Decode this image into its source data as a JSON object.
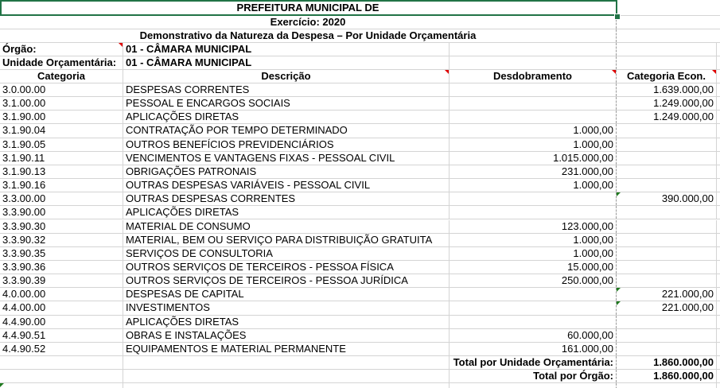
{
  "header": {
    "title": "PREFEITURA MUNICIPAL DE",
    "exercise": "Exercício: 2020",
    "subtitle": "Demonstrativo da Natureza da Despesa – Por Unidade Orçamentária",
    "orgao_label": "Órgão:",
    "orgao_value": "01 - CÂMARA MUNICIPAL",
    "unidade_label": "Unidade Orçamentária:",
    "unidade_value": "01 - CÂMARA MUNICIPAL"
  },
  "columns": [
    "Categoria",
    "Descrição",
    "Desdobramento",
    "Categoria Econ."
  ],
  "rows": [
    {
      "cat": "3.0.00.00",
      "desc": "DESPESAS CORRENTES",
      "desd": "",
      "econ": "1.639.000,00"
    },
    {
      "cat": "3.1.00.00",
      "desc": "PESSOAL E ENCARGOS SOCIAIS",
      "desd": "",
      "econ": "1.249.000,00"
    },
    {
      "cat": "3.1.90.00",
      "desc": "APLICAÇÕES DIRETAS",
      "desd": "",
      "econ": "1.249.000,00"
    },
    {
      "cat": "3.1.90.04",
      "desc": "CONTRATAÇÃO POR TEMPO DETERMINADO",
      "desd": "1.000,00",
      "econ": ""
    },
    {
      "cat": "3.1.90.05",
      "desc": "OUTROS BENEFÍCIOS PREVIDENCIÁRIOS",
      "desd": "1.000,00",
      "econ": ""
    },
    {
      "cat": "3.1.90.11",
      "desc": "VENCIMENTOS E VANTAGENS FIXAS -  PESSOAL CIVIL",
      "desd": "1.015.000,00",
      "econ": ""
    },
    {
      "cat": "3.1.90.13",
      "desc": "OBRIGAÇÕES PATRONAIS",
      "desd": "231.000,00",
      "econ": ""
    },
    {
      "cat": "3.1.90.16",
      "desc": "OUTRAS DESPESAS VARIÁVEIS - PESSOAL CIVIL",
      "desd": "1.000,00",
      "econ": ""
    },
    {
      "cat": "3.3.00.00",
      "desc": "OUTRAS DESPESAS CORRENTES",
      "desd": "",
      "econ": "390.000,00",
      "flag": true
    },
    {
      "cat": "3.3.90.00",
      "desc": "APLICAÇÕES DIRETAS",
      "desd": "",
      "econ": ""
    },
    {
      "cat": "3.3.90.30",
      "desc": "MATERIAL DE CONSUMO",
      "desd": "123.000,00",
      "econ": ""
    },
    {
      "cat": "3.3.90.32",
      "desc": "MATERIAL, BEM OU SERVIÇO PARA DISTRIBUIÇÃO GRATUITA",
      "desd": "1.000,00",
      "econ": ""
    },
    {
      "cat": "3.3.90.35",
      "desc": "SERVIÇOS DE CONSULTORIA",
      "desd": "1.000,00",
      "econ": ""
    },
    {
      "cat": "3.3.90.36",
      "desc": "OUTROS SERVIÇOS DE TERCEIROS - PESSOA FÍSICA",
      "desd": "15.000,00",
      "econ": ""
    },
    {
      "cat": "3.3.90.39",
      "desc": "OUTROS SERVIÇOS DE TERCEIROS -  PESSOA JURÍDICA",
      "desd": "250.000,00",
      "econ": ""
    },
    {
      "cat": "4.0.00.00",
      "desc": "DESPESAS DE CAPITAL",
      "desd": "",
      "econ": "221.000,00",
      "flag": true
    },
    {
      "cat": "4.4.00.00",
      "desc": "INVESTIMENTOS",
      "desd": "",
      "econ": "221.000,00",
      "flag": true
    },
    {
      "cat": "4.4.90.00",
      "desc": "APLICAÇÕES DIRETAS",
      "desd": "",
      "econ": ""
    },
    {
      "cat": "4.4.90.51",
      "desc": "OBRAS E INSTALAÇÕES",
      "desd": "60.000,00",
      "econ": ""
    },
    {
      "cat": "4.4.90.52",
      "desc": "EQUIPAMENTOS E MATERIAL PERMANENTE",
      "desd": "161.000,00",
      "econ": ""
    }
  ],
  "totals": {
    "unidade_label": "Total por Unidade Orçamentária:",
    "unidade_value": "1.860.000,00",
    "orgao_label": "Total por Órgão:",
    "orgao_value": "1.860.000,00"
  },
  "colors": {
    "selection": "#217346",
    "comment": "#e00000",
    "error_flag": "#1e7a1e",
    "grid": "#d4d4d4"
  }
}
